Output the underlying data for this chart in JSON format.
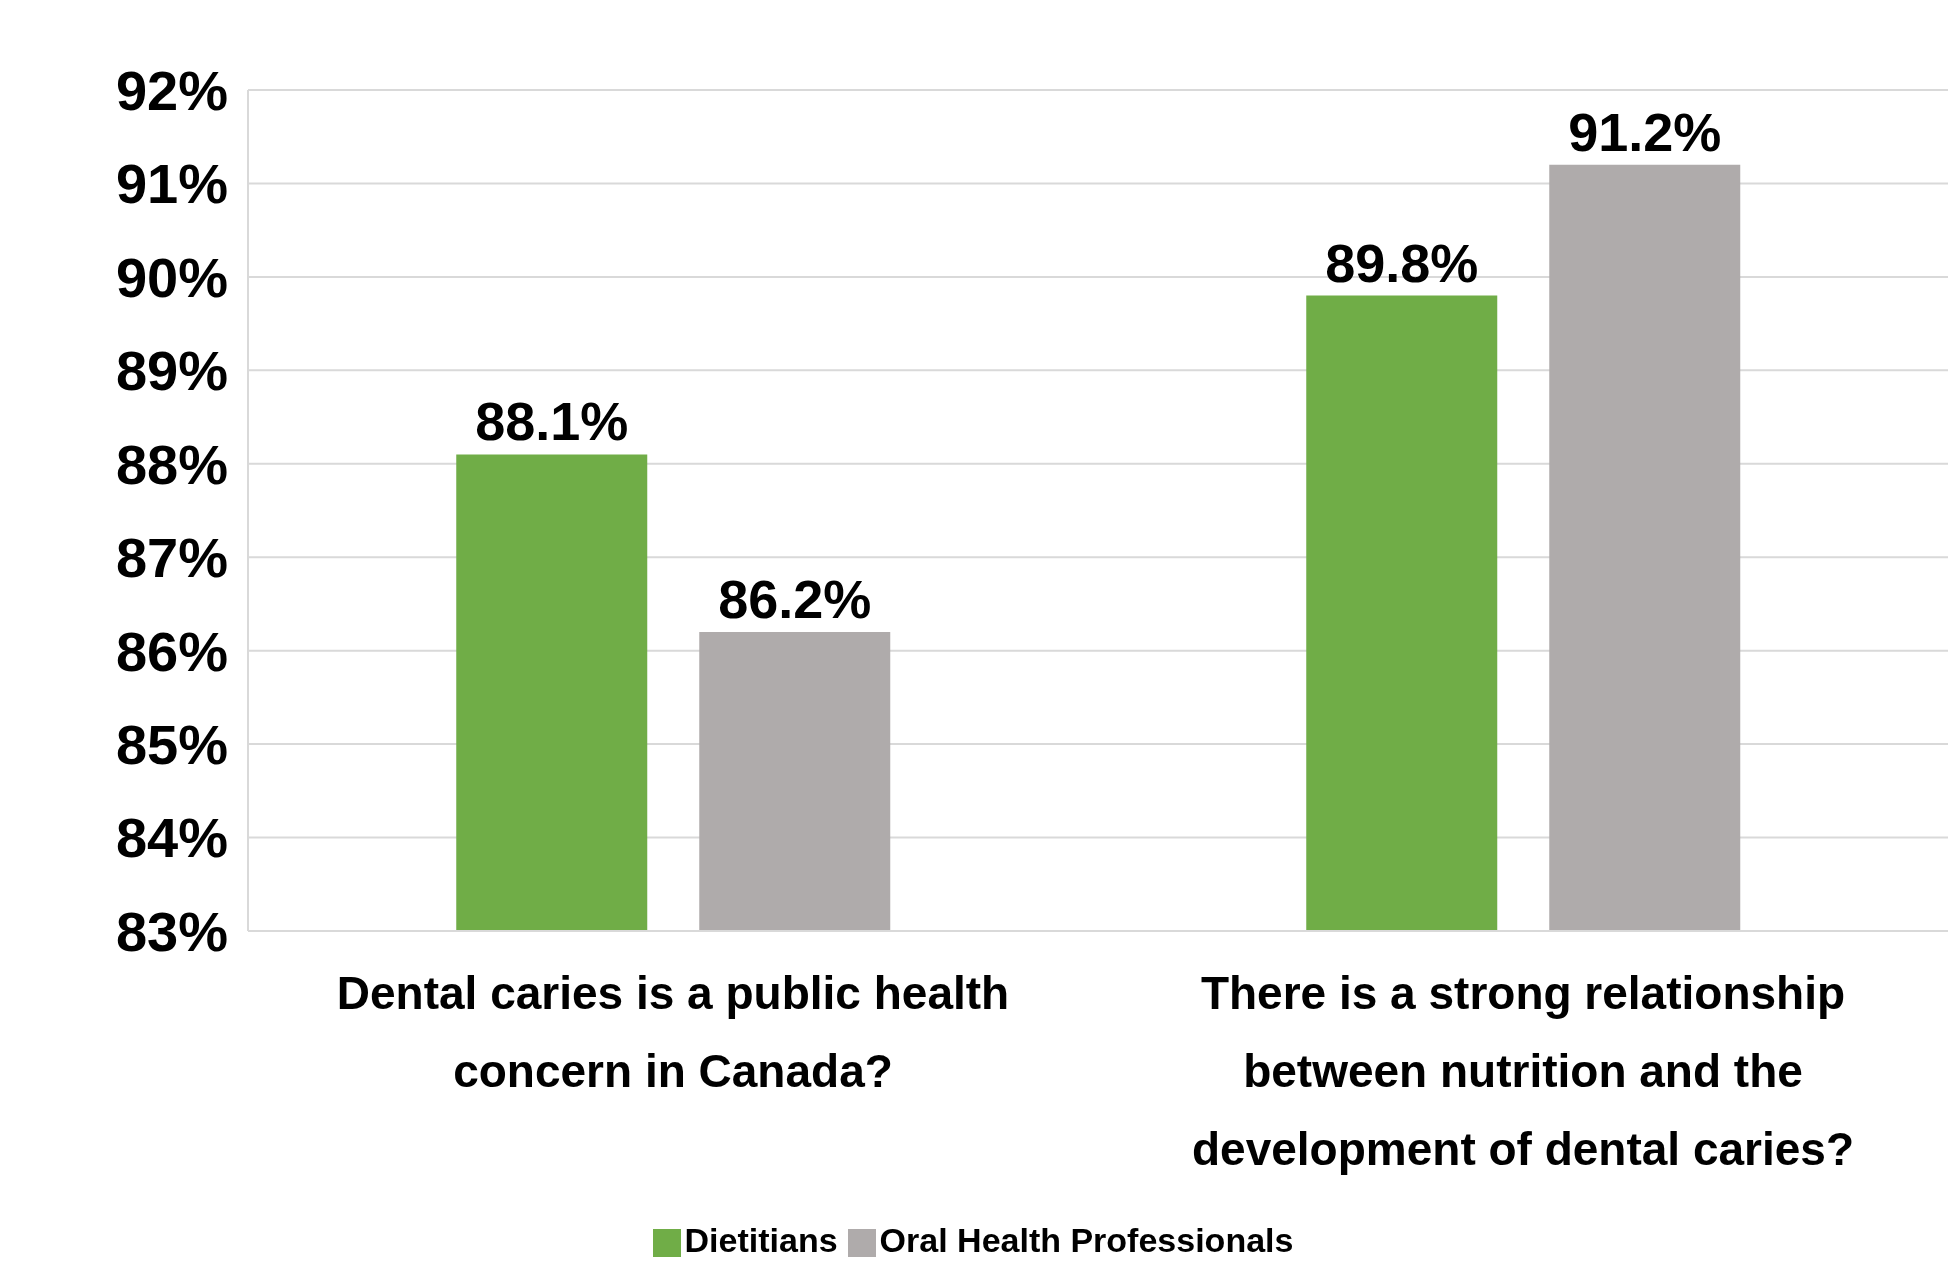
{
  "chart_data": {
    "type": "bar",
    "categories": [
      "Dental caries is a public health concern in Canada?",
      "There is a strong relationship between nutrition and the development of dental caries?"
    ],
    "series": [
      {
        "name": "Dietitians",
        "color": "#70ad47",
        "values": [
          88.1,
          89.8
        ],
        "value_labels": [
          "88.1%",
          "89.8%"
        ]
      },
      {
        "name": "Oral Health Professionals",
        "color": "#afabab",
        "values": [
          86.2,
          91.2
        ],
        "value_labels": [
          "86.2%",
          "91.2%"
        ]
      }
    ],
    "ylim": [
      83,
      92
    ],
    "yticks": [
      {
        "value": 83,
        "label": "83%"
      },
      {
        "value": 84,
        "label": "84%"
      },
      {
        "value": 85,
        "label": "85%"
      },
      {
        "value": 86,
        "label": "86%"
      },
      {
        "value": 87,
        "label": "87%"
      },
      {
        "value": 88,
        "label": "88%"
      },
      {
        "value": 89,
        "label": "89%"
      },
      {
        "value": 90,
        "label": "90%"
      },
      {
        "value": 91,
        "label": "91%"
      },
      {
        "value": 92,
        "label": "92%"
      }
    ],
    "grid": "y",
    "legend": "bottom"
  }
}
